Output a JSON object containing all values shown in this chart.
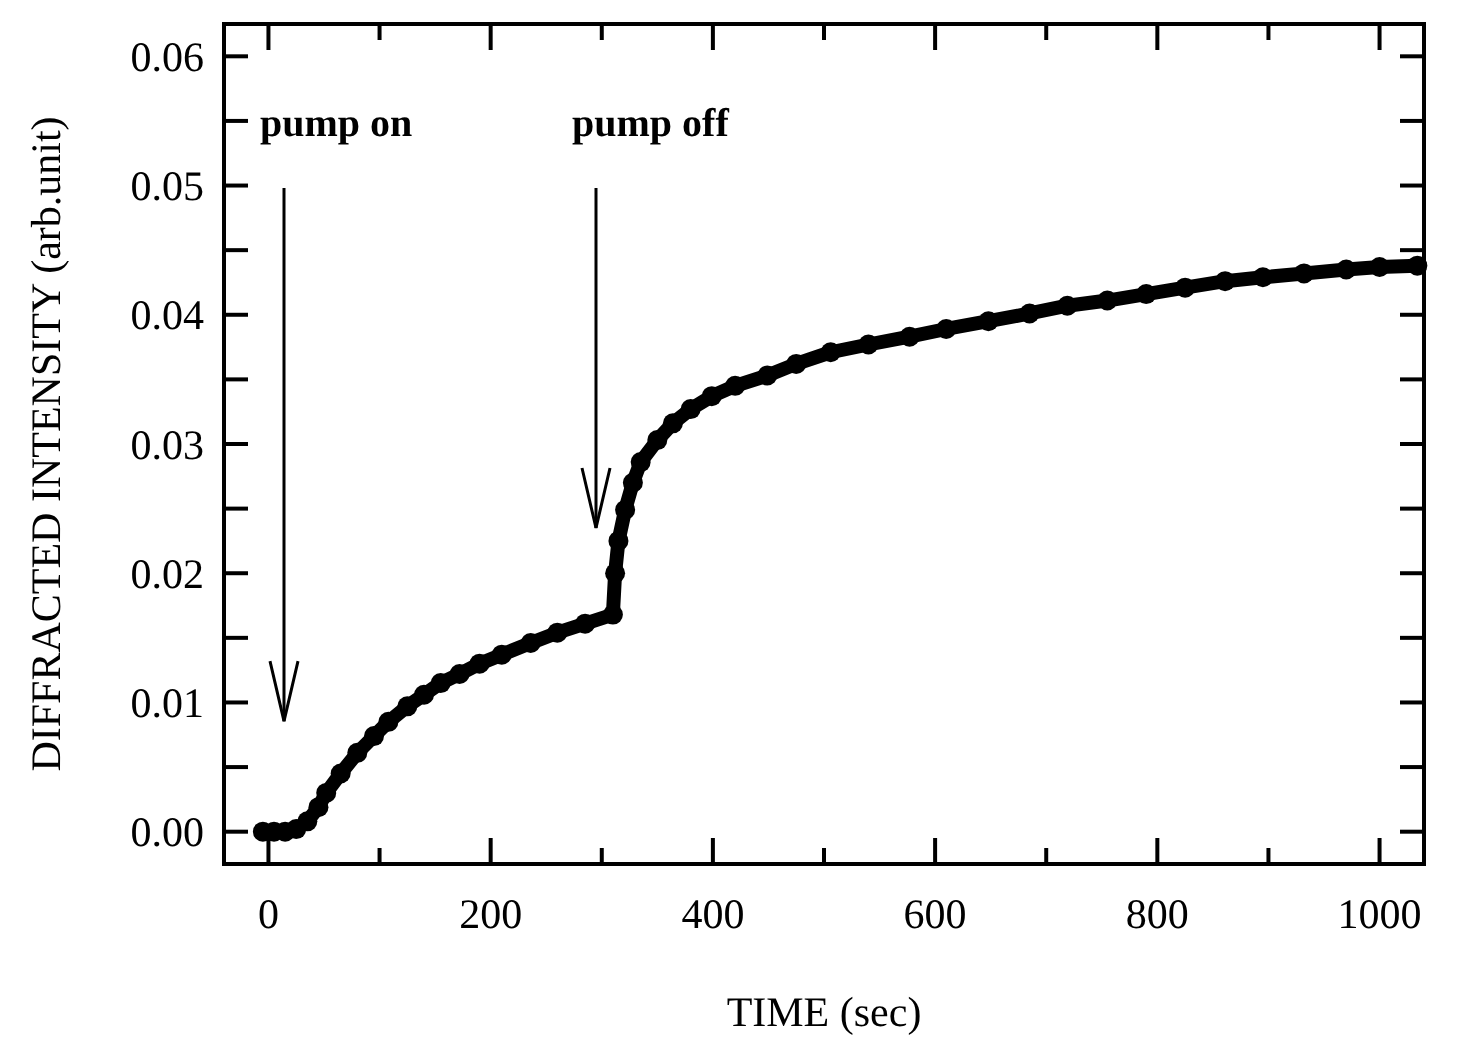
{
  "chart_data": {
    "type": "line",
    "xlabel": "TIME (sec)",
    "ylabel": "DIFFRACTED INTENSITY (arb.unit)",
    "xlim": [
      -40,
      1040
    ],
    "ylim": [
      -0.0025,
      0.0625
    ],
    "xticks": [
      0,
      {
        "value": 100,
        "label": null
      },
      200,
      {
        "value": 300,
        "label": null
      },
      400,
      {
        "value": 500,
        "label": null
      },
      600,
      {
        "value": 700,
        "label": null
      },
      800,
      {
        "value": 900,
        "label": null
      },
      1000
    ],
    "yticks": [
      "0.00",
      {
        "value": 0.005,
        "label": null
      },
      {
        "value": 0.01,
        "label": "0.01"
      },
      {
        "value": 0.015,
        "label": null
      },
      {
        "value": 0.02,
        "label": "0.02"
      },
      {
        "value": 0.025,
        "label": null
      },
      {
        "value": 0.03,
        "label": "0.03"
      },
      {
        "value": 0.035,
        "label": null
      },
      {
        "value": 0.04,
        "label": "0.04"
      },
      {
        "value": 0.045,
        "label": null
      },
      {
        "value": 0.05,
        "label": "0.05"
      },
      {
        "value": 0.055,
        "label": null
      },
      {
        "value": 0.06,
        "label": "0.06"
      }
    ],
    "marker": "circle",
    "line_style": "solid",
    "grid": false,
    "annotations": [
      "pump on",
      "pump off"
    ],
    "series": [
      {
        "color": "#000000",
        "x": [
          -5,
          5,
          15,
          25,
          35,
          45,
          52,
          65,
          80,
          95,
          108,
          125,
          140,
          155,
          172,
          190,
          210,
          236,
          260,
          285,
          310,
          312,
          315,
          321,
          328,
          335,
          350,
          364,
          380,
          399,
          420,
          449,
          475,
          506,
          540,
          577,
          610,
          648,
          685,
          719,
          755,
          790,
          825,
          861,
          895,
          932,
          970,
          1000,
          1034
        ],
        "values": [
          0,
          0,
          0,
          0.0002,
          0.0008,
          0.0019,
          0.003,
          0.0045,
          0.0061,
          0.0074,
          0.0085,
          0.0097,
          0.0106,
          0.0115,
          0.0122,
          0.013,
          0.0137,
          0.0146,
          0.0154,
          0.0161,
          0.0168,
          0.02,
          0.0225,
          0.0249,
          0.027,
          0.0286,
          0.0303,
          0.0316,
          0.0327,
          0.0337,
          0.0345,
          0.0353,
          0.0362,
          0.0371,
          0.0377,
          0.0383,
          0.0389,
          0.0395,
          0.0401,
          0.0407,
          0.0411,
          0.0416,
          0.0421,
          0.0426,
          0.0429,
          0.0432,
          0.0435,
          0.0437,
          0.0438
        ]
      }
    ]
  }
}
